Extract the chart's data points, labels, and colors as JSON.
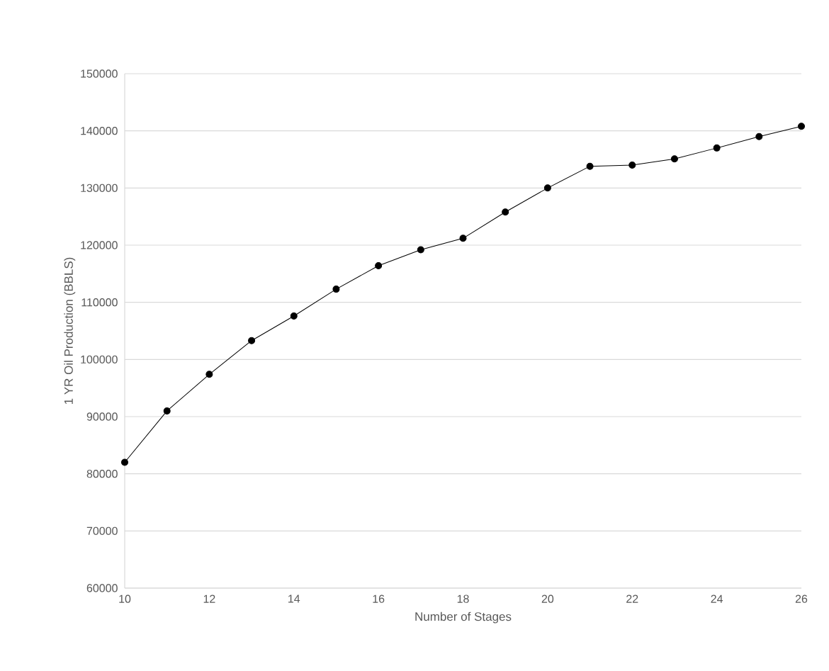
{
  "chart_data": {
    "type": "line",
    "xlabel": "Number of Stages",
    "ylabel": "1 YR Oil Production (BBLS)",
    "x": [
      10,
      11,
      12,
      13,
      14,
      15,
      16,
      17,
      18,
      19,
      20,
      21,
      22,
      23,
      24,
      25,
      26
    ],
    "series": [
      {
        "color": "#000000",
        "values": [
          82000,
          91000,
          97400,
          103300,
          107600,
          112300,
          116400,
          119200,
          121200,
          125800,
          130000,
          133800,
          134000,
          135100,
          137000,
          139000,
          140800
        ]
      }
    ],
    "xlim": [
      10,
      26
    ],
    "xticks": [
      10,
      12,
      14,
      16,
      18,
      20,
      22,
      24,
      26
    ],
    "ylim": [
      60000,
      150000
    ],
    "yticks": [
      60000,
      70000,
      80000,
      90000,
      100000,
      110000,
      120000,
      130000,
      140000,
      150000
    ],
    "grid": "y",
    "marker": "circle",
    "line_style": "solid"
  }
}
